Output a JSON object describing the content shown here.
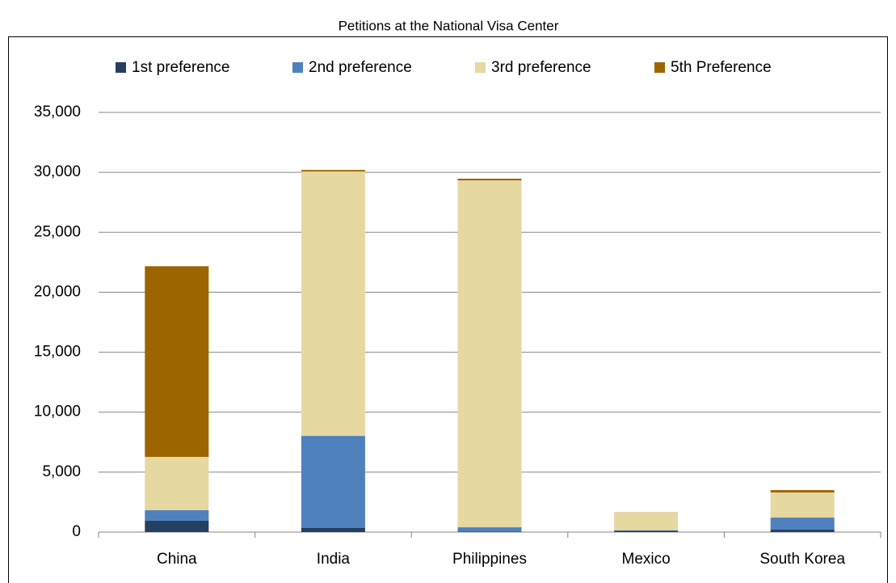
{
  "chart_data": {
    "type": "stacked_bar",
    "title": "Petitions at the National Visa Center",
    "categories": [
      "China",
      "India",
      "Philippines",
      "Mexico",
      "South Korea"
    ],
    "series": [
      {
        "name": "1st preference",
        "color": "#243f60",
        "values": [
          950,
          340,
          30,
          100,
          200
        ]
      },
      {
        "name": "2nd preference",
        "color": "#4f81bd",
        "values": [
          870,
          7680,
          370,
          50,
          1010
        ]
      },
      {
        "name": "3rd preference",
        "color": "#e6d8a1",
        "values": [
          4450,
          22050,
          28930,
          1470,
          2090
        ]
      },
      {
        "name": "5th Preference",
        "color": "#9c6500",
        "values": [
          15900,
          130,
          140,
          20,
          200
        ]
      }
    ],
    "ylim": [
      0,
      35000
    ],
    "yticks": [
      0,
      {
        "value": 5000,
        "label": "5,000"
      },
      {
        "value": 10000,
        "label": "10,000"
      },
      {
        "value": 15000,
        "label": "15,000"
      },
      {
        "value": 20000,
        "label": "20,000"
      },
      {
        "value": 25000,
        "label": "25,000"
      },
      {
        "value": 30000,
        "label": "30,000"
      },
      {
        "value": 35000,
        "label": "35,000"
      }
    ],
    "grid": true,
    "legend": "top"
  }
}
